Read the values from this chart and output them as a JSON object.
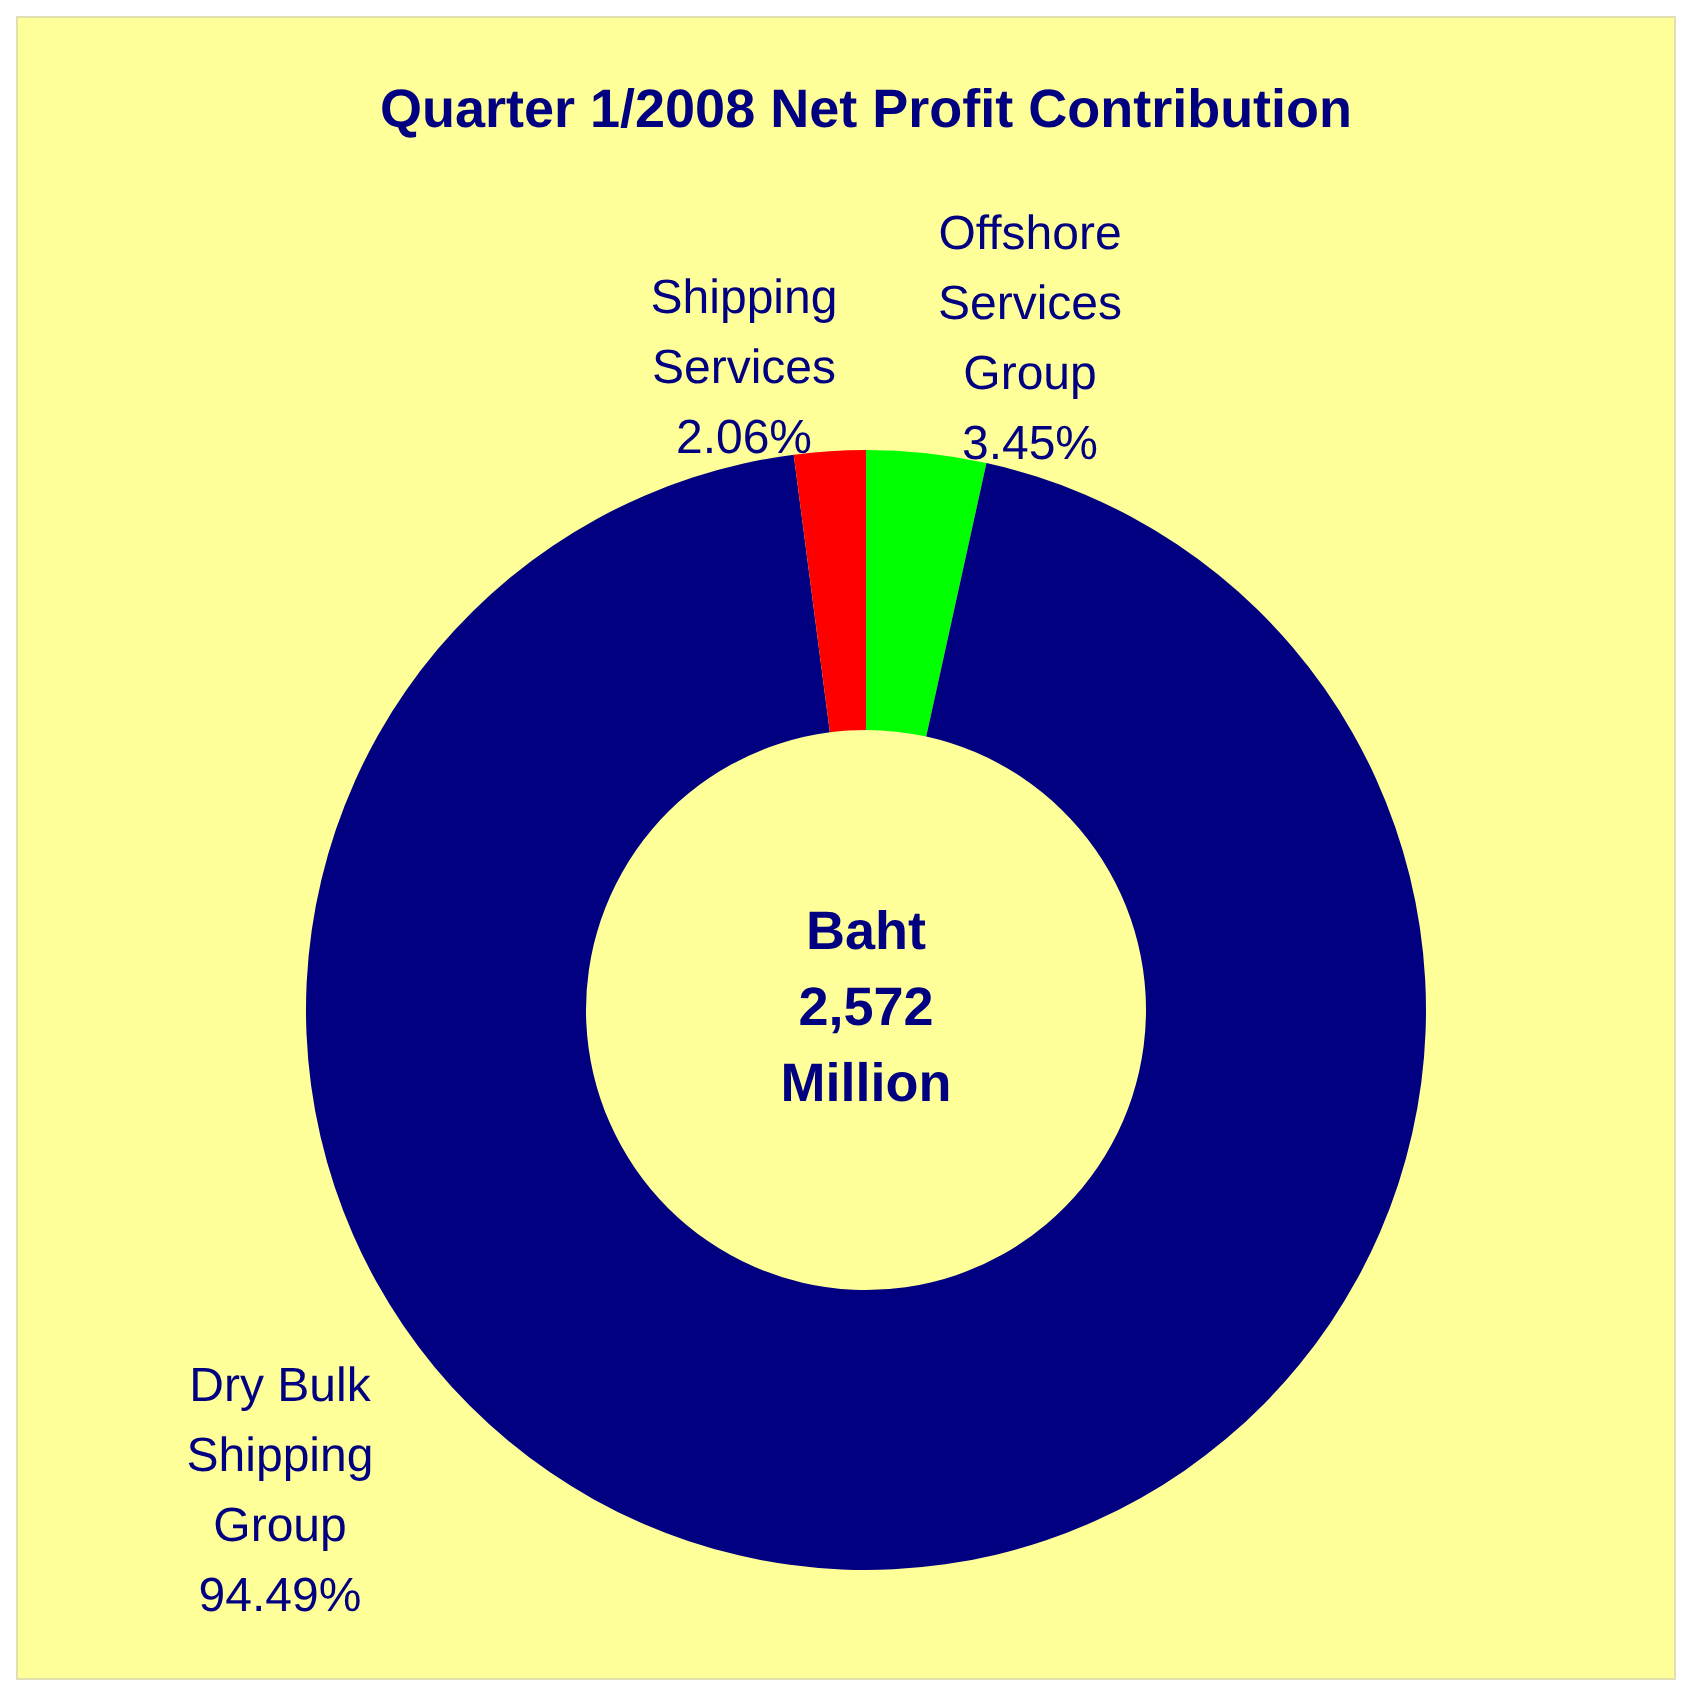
{
  "chart_data": {
    "type": "donut",
    "title": "Quarter 1/2008 Net Profit Contribution",
    "categories": [
      "Offshore Services Group",
      "Dry Bulk Shipping Group",
      "Shipping Services"
    ],
    "values": [
      3.45,
      94.49,
      2.06
    ],
    "colors": [
      "#00ff00",
      "#000080",
      "#ff0000"
    ],
    "value_labels": [
      "3.45%",
      "94.49%",
      "2.06%"
    ],
    "legend": false,
    "annotations": [
      "Baht\n2,572\nMillion"
    ]
  }
}
